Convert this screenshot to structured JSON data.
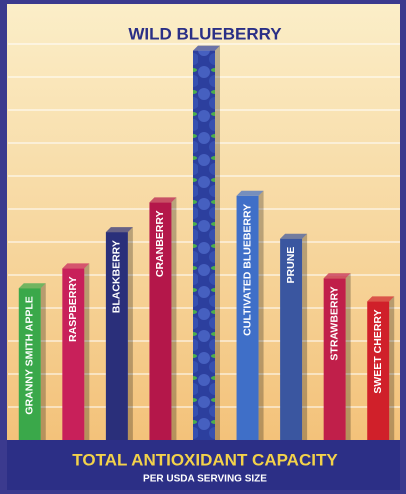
{
  "chart_data": {
    "type": "bar",
    "title": "TOTAL ANTIOXIDANT CAPACITY",
    "subtitle": "PER USDA SERVING SIZE",
    "annotation": "WILD BLUEBERRY",
    "categories": [
      "GRANNY SMITH APPLE",
      "RASPBERRY",
      "BLACKBERRY",
      "CRANBERRY",
      null,
      "CULTIVATED BLUEBERRY",
      "PRUNE",
      "STRAWBERRY",
      "SWEET CHERRY"
    ],
    "values": [
      4.6,
      5.2,
      6.3,
      7.2,
      11.8,
      7.4,
      6.1,
      4.9,
      4.2
    ],
    "colors": [
      "#3aa84a",
      "#c8205a",
      "#2a2f7a",
      "#b4174a",
      "#2c3f9e",
      "#3f6fc8",
      "#3a56a0",
      "#c01f4a",
      "#d0202a"
    ],
    "ylim": [
      0,
      13
    ],
    "yticks": [
      1,
      2,
      3,
      4,
      5,
      6,
      7,
      8,
      9,
      10,
      11,
      12
    ],
    "grid": true
  }
}
